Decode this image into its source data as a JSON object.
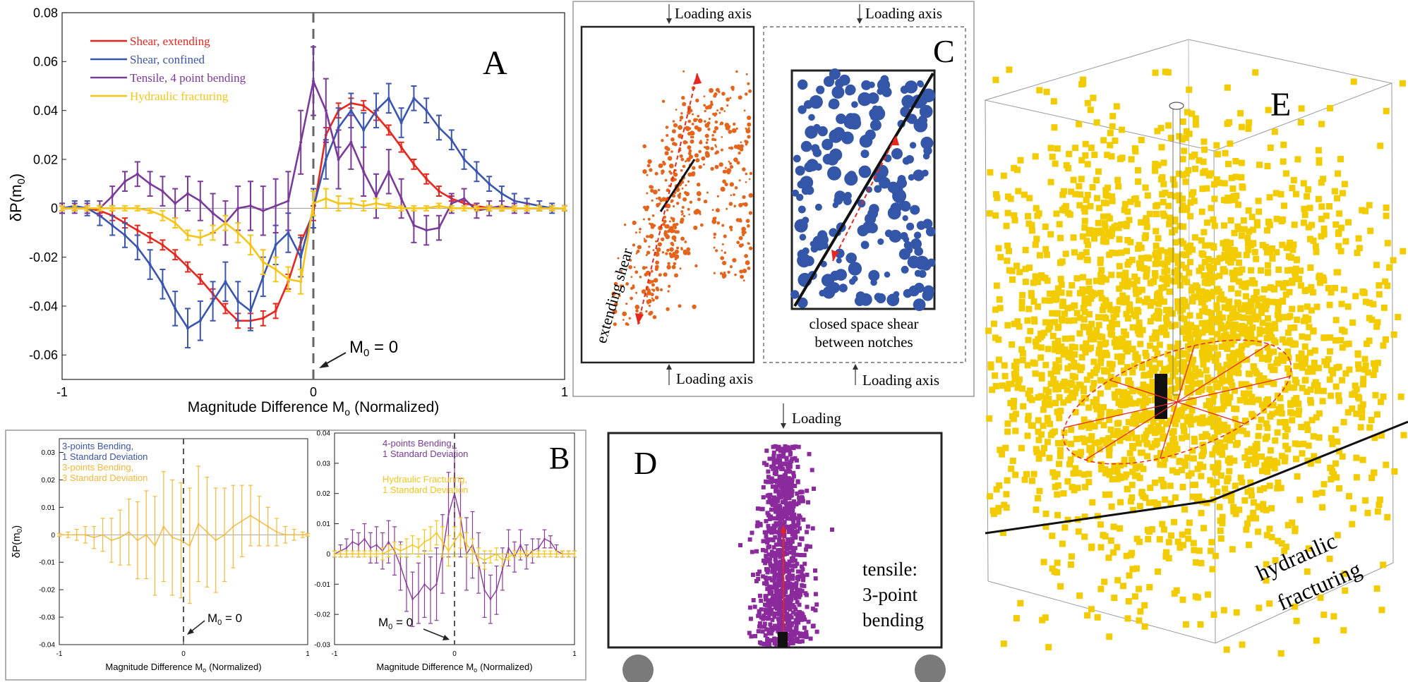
{
  "chart_data": [
    {
      "panel": "A",
      "type": "line",
      "panel_label": "A",
      "xlabel": "Magnitude Difference M",
      "xlabel_sub": "o",
      "xlabel_tail": "(Normalized)",
      "ylabel": "δP(m",
      "ylabel_sub": "0",
      "ylabel_tail": ")",
      "xlim": [
        -1,
        1
      ],
      "ylim": [
        -0.07,
        0.08
      ],
      "xticks": [
        "-1",
        "0",
        "1"
      ],
      "yticks": [
        "0.08",
        "0.06",
        "0.04",
        "0.02",
        "0",
        "-0.02",
        "-0.04",
        "-0.06"
      ],
      "annotation": "M",
      "annotation_sub": "0",
      "annotation_tail": " = 0",
      "legend_placement": "top-left",
      "series": [
        {
          "name": "Shear, extending",
          "color": "#e8261e",
          "x": [
            -1,
            -0.95,
            -0.9,
            -0.85,
            -0.8,
            -0.75,
            -0.7,
            -0.65,
            -0.6,
            -0.55,
            -0.5,
            -0.45,
            -0.4,
            -0.35,
            -0.3,
            -0.25,
            -0.2,
            -0.15,
            -0.1,
            -0.05,
            0,
            0.05,
            0.1,
            0.15,
            0.2,
            0.25,
            0.3,
            0.35,
            0.4,
            0.45,
            0.5,
            0.55,
            0.6,
            0.65,
            0.7,
            0.75,
            0.8,
            0.85,
            0.9,
            0.95,
            1
          ],
          "y": [
            0,
            0,
            0,
            -0.001,
            -0.003,
            -0.006,
            -0.009,
            -0.012,
            -0.015,
            -0.019,
            -0.024,
            -0.029,
            -0.035,
            -0.041,
            -0.046,
            -0.046,
            -0.045,
            -0.042,
            -0.03,
            -0.014,
            -0.002,
            0.03,
            0.04,
            0.043,
            0.042,
            0.038,
            0.032,
            0.025,
            0.018,
            0.012,
            0.007,
            0.004,
            0.002,
            0.001,
            0,
            0,
            0,
            0,
            0,
            0,
            0
          ],
          "err": [
            0.001,
            0.001,
            0.001,
            0.001,
            0.002,
            0.002,
            0.002,
            0.002,
            0.002,
            0.002,
            0.002,
            0.002,
            0.002,
            0.002,
            0.003,
            0.003,
            0.003,
            0.003,
            0.003,
            0.003,
            0.003,
            0.003,
            0.003,
            0.002,
            0.002,
            0.002,
            0.002,
            0.002,
            0.002,
            0.002,
            0.002,
            0.001,
            0.001,
            0.001,
            0.001,
            0.001,
            0.001,
            0.001,
            0.001,
            0.001,
            0.001
          ]
        },
        {
          "name": "Shear, confined",
          "color": "#3a55b0",
          "x": [
            -1,
            -0.95,
            -0.9,
            -0.85,
            -0.8,
            -0.75,
            -0.7,
            -0.65,
            -0.6,
            -0.55,
            -0.5,
            -0.45,
            -0.4,
            -0.35,
            -0.3,
            -0.25,
            -0.2,
            -0.15,
            -0.1,
            -0.05,
            0,
            0.05,
            0.1,
            0.15,
            0.2,
            0.25,
            0.3,
            0.35,
            0.4,
            0.45,
            0.5,
            0.55,
            0.6,
            0.65,
            0.7,
            0.75,
            0.8,
            0.85,
            0.9,
            0.95,
            1
          ],
          "y": [
            0,
            0.001,
            0,
            -0.003,
            -0.007,
            -0.011,
            -0.016,
            -0.023,
            -0.031,
            -0.041,
            -0.049,
            -0.046,
            -0.038,
            -0.03,
            -0.038,
            -0.042,
            -0.028,
            -0.015,
            -0.01,
            -0.02,
            0,
            0.02,
            0.033,
            0.04,
            0.032,
            0.04,
            0.045,
            0.035,
            0.045,
            0.04,
            0.033,
            0.028,
            0.02,
            0.015,
            0.01,
            0.006,
            0.003,
            0.002,
            0.001,
            0,
            0
          ],
          "err": [
            0.002,
            0.002,
            0.003,
            0.004,
            0.004,
            0.005,
            0.005,
            0.006,
            0.006,
            0.007,
            0.008,
            0.008,
            0.008,
            0.008,
            0.008,
            0.008,
            0.008,
            0.008,
            0.008,
            0.008,
            0.008,
            0.008,
            0.008,
            0.007,
            0.007,
            0.007,
            0.006,
            0.006,
            0.005,
            0.005,
            0.005,
            0.004,
            0.004,
            0.004,
            0.003,
            0.003,
            0.003,
            0.002,
            0.002,
            0.002,
            0.001
          ]
        },
        {
          "name": "Tensile, 4 point bending",
          "color": "#7b3a9a",
          "x": [
            -1,
            -0.95,
            -0.9,
            -0.85,
            -0.8,
            -0.75,
            -0.7,
            -0.65,
            -0.6,
            -0.55,
            -0.5,
            -0.45,
            -0.4,
            -0.35,
            -0.3,
            -0.25,
            -0.2,
            -0.15,
            -0.1,
            -0.05,
            0,
            0.05,
            0.1,
            0.15,
            0.2,
            0.25,
            0.3,
            0.35,
            0.4,
            0.45,
            0.5,
            0.55,
            0.6,
            0.65,
            0.7,
            0.75,
            0.8,
            0.85,
            0.9,
            0.95,
            1
          ],
          "y": [
            0,
            0,
            0,
            0,
            0.005,
            0.011,
            0.014,
            0.01,
            0.007,
            0.002,
            0.006,
            0.003,
            -0.002,
            -0.006,
            0,
            0.001,
            -0.001,
            0.001,
            0.003,
            0.027,
            0.052,
            0.04,
            0.02,
            0.027,
            0.015,
            0.005,
            0.015,
            0.004,
            -0.007,
            -0.009,
            -0.008,
            0.002,
            0.004,
            -0.001,
            0,
            0.001,
            0,
            0,
            0,
            0,
            0
          ],
          "err": [
            0.002,
            0.002,
            0.002,
            0.003,
            0.004,
            0.004,
            0.005,
            0.005,
            0.006,
            0.006,
            0.007,
            0.008,
            0.008,
            0.009,
            0.009,
            0.01,
            0.01,
            0.011,
            0.012,
            0.013,
            0.014,
            0.013,
            0.012,
            0.011,
            0.01,
            0.009,
            0.009,
            0.008,
            0.007,
            0.006,
            0.005,
            0.004,
            0.004,
            0.003,
            0.003,
            0.002,
            0.002,
            0.002,
            0.001,
            0.001,
            0.001
          ]
        },
        {
          "name": "Hydraulic fracturing",
          "color": "#f5c518",
          "x": [
            -1,
            -0.95,
            -0.9,
            -0.85,
            -0.8,
            -0.75,
            -0.7,
            -0.65,
            -0.6,
            -0.55,
            -0.5,
            -0.45,
            -0.4,
            -0.35,
            -0.3,
            -0.25,
            -0.2,
            -0.15,
            -0.1,
            -0.05,
            0,
            0.05,
            0.1,
            0.15,
            0.2,
            0.25,
            0.3,
            0.35,
            0.4,
            0.45,
            0.5,
            0.55,
            0.6,
            0.65,
            0.7,
            0.75,
            0.8,
            0.85,
            0.9,
            0.95,
            1
          ],
          "y": [
            0,
            0,
            0,
            0,
            0,
            0,
            0,
            -0.001,
            -0.003,
            -0.006,
            -0.011,
            -0.012,
            -0.01,
            -0.006,
            -0.01,
            -0.015,
            -0.022,
            -0.025,
            -0.029,
            -0.03,
            0.002,
            0.004,
            0.002,
            0.002,
            0.001,
            0.002,
            0.001,
            0,
            0,
            0,
            0.001,
            0,
            0,
            0,
            0,
            0,
            0,
            0,
            0,
            0,
            0
          ],
          "err": [
            0.001,
            0.001,
            0.001,
            0.001,
            0.001,
            0.001,
            0.001,
            0.001,
            0.002,
            0.002,
            0.002,
            0.003,
            0.003,
            0.003,
            0.004,
            0.004,
            0.005,
            0.005,
            0.005,
            0.005,
            0.005,
            0.004,
            0.003,
            0.002,
            0.002,
            0.002,
            0.001,
            0.001,
            0.001,
            0.001,
            0.001,
            0.001,
            0.001,
            0.001,
            0.001,
            0.001,
            0.001,
            0.001,
            0.001,
            0.001,
            0.001
          ]
        }
      ]
    },
    {
      "panel": "B-left",
      "type": "line",
      "xlabel": "Magnitude Difference M",
      "xlabel_sub": "o",
      "xlabel_tail": "(Normalized)",
      "ylabel": "δP(m",
      "ylabel_sub": "0",
      "ylabel_tail": ")",
      "xlim": [
        -1,
        1
      ],
      "ylim": [
        -0.04,
        0.035
      ],
      "xticks": [
        "-1",
        "0",
        "1"
      ],
      "yticks": [
        "0.03",
        "0.02",
        "0.01",
        "0",
        "-0.01",
        "-0.02",
        "-0.03",
        "-0.04"
      ],
      "annotation": "M",
      "annotation_sub": "0",
      "annotation_tail": " = 0",
      "legend": [
        {
          "lines": [
            "3-points Bending,",
            "1 Standard Deviation"
          ],
          "color": "#3a55b0"
        },
        {
          "lines": [
            "3-points Bending,",
            "3 Standard Deviation"
          ],
          "color": "#f5b83a"
        }
      ],
      "series": [
        {
          "name": "3-points Bending",
          "color": "#f5b83a",
          "x": [
            -1,
            -0.93,
            -0.86,
            -0.79,
            -0.72,
            -0.65,
            -0.58,
            -0.51,
            -0.44,
            -0.37,
            -0.3,
            -0.23,
            -0.16,
            -0.09,
            -0.02,
            0.05,
            0.12,
            0.19,
            0.26,
            0.33,
            0.4,
            0.47,
            0.54,
            0.61,
            0.68,
            0.75,
            0.82,
            0.89,
            0.96,
            1
          ],
          "y": [
            0,
            0,
            0,
            0,
            -0.001,
            0,
            -0.002,
            -0.001,
            0.001,
            -0.002,
            0,
            -0.004,
            0.003,
            -0.001,
            -0.002,
            -0.004,
            0.004,
            0.001,
            -0.002,
            0,
            0.003,
            0.005,
            0.007,
            0.005,
            0.003,
            0.001,
            0,
            0,
            0,
            0
          ],
          "err": [
            0.0005,
            0.001,
            0.002,
            0.003,
            0.004,
            0.006,
            0.008,
            0.01,
            0.012,
            0.014,
            0.016,
            0.018,
            0.02,
            0.021,
            0.021,
            0.021,
            0.021,
            0.02,
            0.019,
            0.017,
            0.015,
            0.013,
            0.011,
            0.009,
            0.007,
            0.005,
            0.003,
            0.002,
            0.001,
            0.0005
          ]
        }
      ]
    },
    {
      "panel": "B-right",
      "type": "line",
      "panel_label": "B",
      "xlabel": "Magnitude Difference M",
      "xlabel_sub": "o",
      "xlabel_tail": "(Normalized)",
      "xlim": [
        -1,
        1
      ],
      "ylim": [
        -0.03,
        0.04
      ],
      "xticks": [
        "-1",
        "0",
        "1"
      ],
      "yticks": [
        "0.04",
        "0.03",
        "0.02",
        "0.01",
        "0",
        "-0.01",
        "-0.02",
        "-0.03"
      ],
      "annotation": "M",
      "annotation_sub": "0",
      "annotation_tail": " = 0",
      "legend": [
        {
          "lines": [
            "4-points Bending,",
            "1 Standard Deviation"
          ],
          "color": "#7b3a9a"
        },
        {
          "lines": [
            "Hydraulic Fracturing,",
            "1 Standard Deviation"
          ],
          "color": "#f5c518"
        }
      ],
      "series": [
        {
          "name": "4-points Bending",
          "color": "#8a3a9e",
          "x": [
            -1,
            -0.95,
            -0.9,
            -0.85,
            -0.8,
            -0.75,
            -0.7,
            -0.65,
            -0.6,
            -0.55,
            -0.5,
            -0.45,
            -0.4,
            -0.35,
            -0.3,
            -0.25,
            -0.2,
            -0.15,
            -0.1,
            -0.05,
            0,
            0.05,
            0.1,
            0.15,
            0.2,
            0.25,
            0.3,
            0.35,
            0.4,
            0.45,
            0.5,
            0.55,
            0.6,
            0.65,
            0.7,
            0.75,
            0.8,
            0.85,
            0.9,
            0.95,
            1
          ],
          "y": [
            0,
            0.001,
            0.002,
            0.004,
            0.003,
            0.005,
            0.002,
            0.003,
            0.001,
            0.004,
            0.001,
            -0.004,
            -0.01,
            -0.015,
            -0.013,
            -0.01,
            -0.012,
            -0.01,
            0,
            0.013,
            0.02,
            0.012,
            0,
            0.003,
            -0.003,
            -0.012,
            -0.015,
            -0.012,
            -0.005,
            0.002,
            -0.001,
            0.003,
            -0.001,
            0.001,
            0.002,
            0.005,
            0.004,
            0.001,
            0,
            0,
            0
          ],
          "err": [
            0.001,
            0.002,
            0.003,
            0.004,
            0.004,
            0.005,
            0.005,
            0.006,
            0.006,
            0.007,
            0.008,
            0.008,
            0.009,
            0.009,
            0.01,
            0.011,
            0.011,
            0.012,
            0.013,
            0.014,
            0.015,
            0.013,
            0.012,
            0.011,
            0.01,
            0.009,
            0.008,
            0.008,
            0.007,
            0.006,
            0.005,
            0.005,
            0.004,
            0.004,
            0.003,
            0.003,
            0.002,
            0.002,
            0.001,
            0.001,
            0.001
          ]
        },
        {
          "name": "Hydraulic Fracturing",
          "color": "#f5c518",
          "x": [
            -1,
            -0.95,
            -0.9,
            -0.85,
            -0.8,
            -0.75,
            -0.7,
            -0.65,
            -0.6,
            -0.55,
            -0.5,
            -0.45,
            -0.4,
            -0.35,
            -0.3,
            -0.25,
            -0.2,
            -0.15,
            -0.1,
            -0.05,
            0,
            0.05,
            0.1,
            0.15,
            0.2,
            0.25,
            0.3,
            0.35,
            0.4,
            0.45,
            0.5,
            0.55,
            0.6,
            0.65,
            0.7,
            0.75,
            0.8,
            0.85,
            0.9,
            0.95,
            1
          ],
          "y": [
            0,
            0,
            0,
            0,
            0,
            0,
            0,
            0,
            0,
            0.001,
            0.002,
            0.001,
            0.002,
            0.003,
            0.002,
            0.004,
            0.005,
            0.007,
            0.004,
            0.001,
            0.004,
            0.007,
            0.003,
            0.001,
            -0.001,
            -0.002,
            -0.001,
            0,
            -0.002,
            -0.001,
            0,
            0,
            0,
            0,
            0,
            0,
            0,
            0,
            0,
            0,
            0
          ],
          "err": [
            0.001,
            0.001,
            0.001,
            0.001,
            0.001,
            0.001,
            0.001,
            0.001,
            0.002,
            0.002,
            0.002,
            0.002,
            0.003,
            0.003,
            0.003,
            0.004,
            0.004,
            0.004,
            0.005,
            0.005,
            0.005,
            0.005,
            0.004,
            0.004,
            0.003,
            0.003,
            0.002,
            0.002,
            0.002,
            0.001,
            0.001,
            0.001,
            0.001,
            0.001,
            0.001,
            0.001,
            0.001,
            0.001,
            0.001,
            0.001,
            0.001
          ]
        }
      ]
    }
  ],
  "panel_c": {
    "label": "C",
    "loading_axis_text": "Loading axis",
    "left_annotation": "extending shear",
    "right_annotation_lines": [
      "closed space shear",
      "between notches"
    ],
    "left_dot_color": "#e3641a",
    "right_dot_color": "#3456a8"
  },
  "panel_d": {
    "label": "D",
    "loading_text": "Loading",
    "annotation_lines": [
      "tensile:",
      "3-point",
      "bending"
    ],
    "dot_color": "#8a2a9c"
  },
  "panel_e": {
    "label": "E",
    "annotation_lines": [
      "hydraulic",
      "fracturing"
    ],
    "dot_color": "#f2cc00"
  }
}
